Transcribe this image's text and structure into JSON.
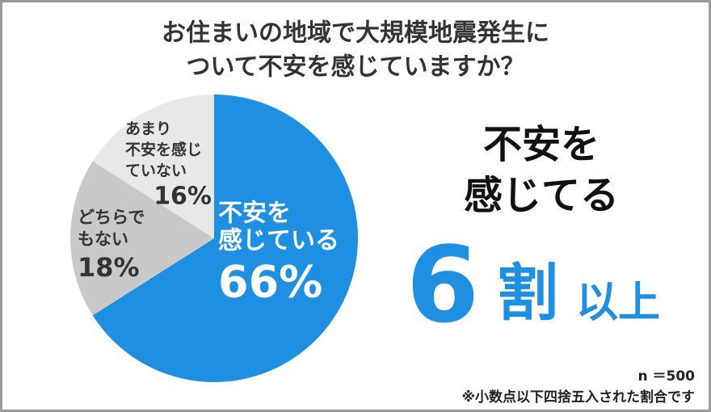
{
  "chart_data": {
    "type": "pie",
    "title": [
      "お住まいの地域で大規模地震発生に",
      "ついて不安を感じていますか？"
    ],
    "categories": [
      [
        "不安を",
        "感じている"
      ],
      [
        "どちらで",
        "もない"
      ],
      [
        "あまり",
        "不安を感じ",
        "ていない"
      ]
    ],
    "values": [
      66,
      18,
      16
    ],
    "value_labels": [
      "66%",
      "18%",
      "16%"
    ],
    "colors": [
      "#1e8fe1",
      "#c9c9c9",
      "#e8e8e8"
    ],
    "headline": [
      "不安を",
      "感じてる"
    ],
    "highlight": [
      "6",
      "割",
      "以上"
    ],
    "sample": "n ＝500",
    "footnote": "※小数点以下四捨五入された割合です"
  }
}
